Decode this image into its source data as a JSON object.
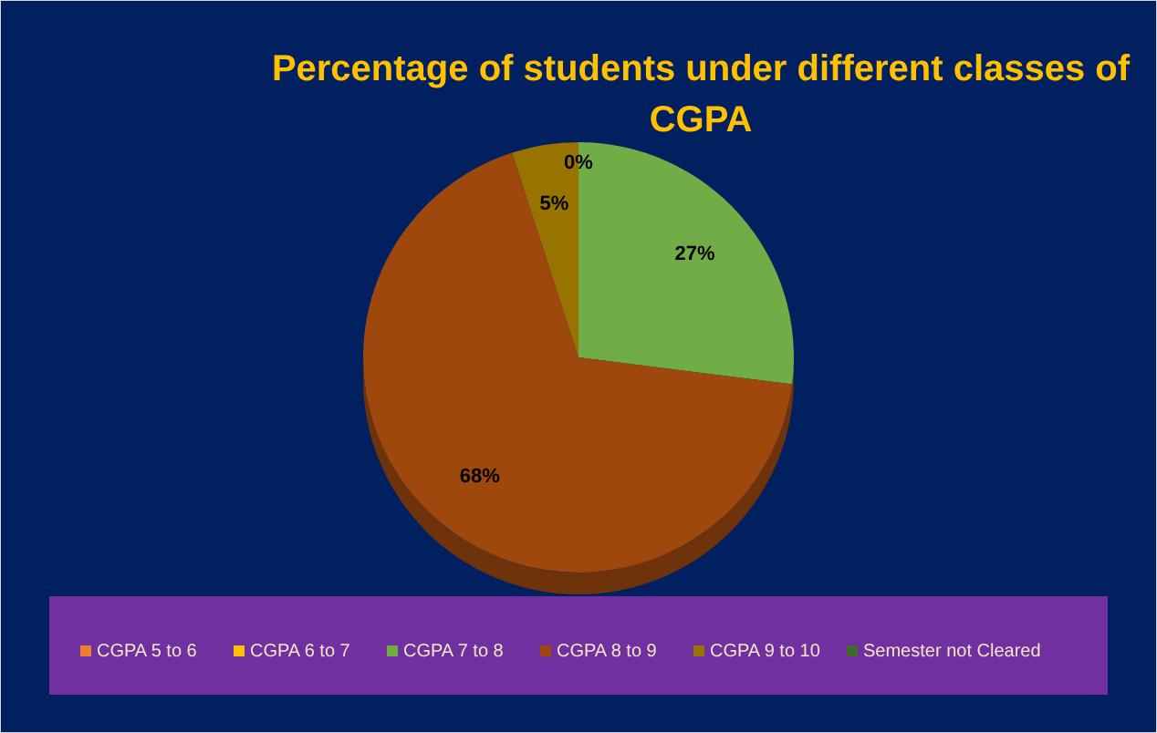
{
  "chart_data": {
    "type": "pie",
    "title": "Percentage of students under different classes of CGPA",
    "categories": [
      "CGPA 5 to 6",
      "CGPA 6 to 7",
      "CGPA 7 to 8",
      "CGPA 8 to 9",
      "CGPA 9 to 10",
      "Semester not Cleared"
    ],
    "values": [
      0,
      0,
      27,
      68,
      5,
      0
    ],
    "value_labels": [
      "0%",
      null,
      "27%",
      "68%",
      "5%",
      null
    ],
    "colors": [
      "#ed7d31",
      "#ffc000",
      "#70ad47",
      "#9e480e",
      "#997300",
      "#43682b"
    ],
    "legend": "bottom"
  }
}
